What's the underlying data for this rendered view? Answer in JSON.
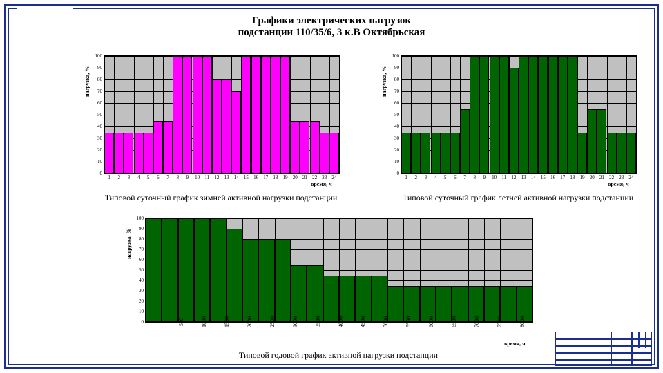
{
  "title_line1": "Графики электрических нагрузок",
  "title_line2": "подстанции 110/35/6, 3 к.В Октябрьская",
  "ylabel": "нагрузка, %",
  "xlabel_hours": "время, ч",
  "xlabel_year": "время, ч",
  "colors": {
    "frame": "#1a2f8f",
    "plot_bg": "#c0c0c0",
    "grid": "#000000",
    "winter_bar": "#ff00ff",
    "summer_bar": "#006400",
    "annual_bar": "#006400"
  },
  "charts": {
    "winter": {
      "caption": "Типовой суточный график зимней активной\nнагрузки подстанции",
      "yticks": [
        0,
        10,
        20,
        30,
        40,
        50,
        60,
        70,
        80,
        90,
        100
      ],
      "xticks": [
        "1",
        "2",
        "3",
        "4",
        "5",
        "6",
        "7",
        "8",
        "9",
        "10",
        "11",
        "12",
        "13",
        "14",
        "15",
        "16",
        "17",
        "18",
        "19",
        "20",
        "21",
        "22",
        "23",
        "24"
      ],
      "ylim": [
        0,
        100
      ],
      "values": [
        35,
        35,
        35,
        35,
        35,
        45,
        45,
        100,
        100,
        100,
        100,
        80,
        80,
        70,
        100,
        100,
        100,
        100,
        100,
        45,
        45,
        45,
        35,
        35
      ],
      "bar_color": "#ff00ff"
    },
    "summer": {
      "caption": "Типовой суточный график летней активной\nнагрузки подстанции",
      "yticks": [
        0,
        10,
        20,
        30,
        40,
        50,
        60,
        70,
        80,
        90,
        100
      ],
      "xticks": [
        "1",
        "2",
        "3",
        "4",
        "5",
        "6",
        "7",
        "8",
        "9",
        "10",
        "11",
        "12",
        "13",
        "14",
        "15",
        "16",
        "17",
        "18",
        "19",
        "20",
        "21",
        "22",
        "23",
        "24"
      ],
      "ylim": [
        0,
        100
      ],
      "values": [
        35,
        35,
        35,
        35,
        35,
        35,
        55,
        100,
        100,
        100,
        100,
        90,
        100,
        100,
        100,
        100,
        100,
        100,
        35,
        55,
        55,
        35,
        35,
        35
      ],
      "bar_color": "#006400"
    },
    "annual": {
      "caption": "Типовой годовой график активной нагрузки подстанции",
      "yticks": [
        0,
        10,
        20,
        30,
        40,
        50,
        60,
        70,
        80,
        90,
        100
      ],
      "xticks": [
        "0",
        "500",
        "1000",
        "1500",
        "2000",
        "2500",
        "3000",
        "3500",
        "4000",
        "4500",
        "5000",
        "5500",
        "6000",
        "6500",
        "7000",
        "7500",
        "8000"
      ],
      "ylim": [
        0,
        100
      ],
      "values": [
        100,
        100,
        100,
        100,
        100,
        90,
        80,
        80,
        80,
        55,
        55,
        45,
        45,
        45,
        45,
        35,
        35,
        35,
        35,
        35,
        35,
        35,
        35,
        35
      ],
      "bar_color": "#006400"
    }
  }
}
